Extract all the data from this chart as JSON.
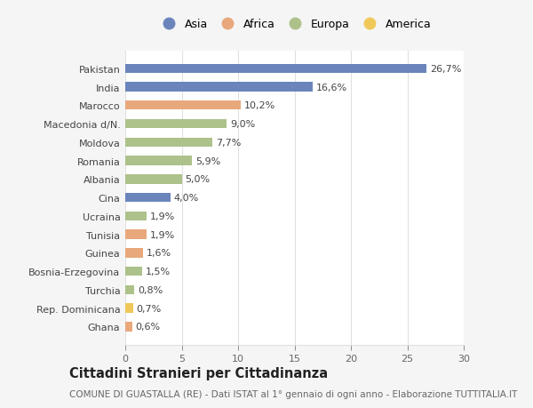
{
  "countries": [
    "Pakistan",
    "India",
    "Marocco",
    "Macedonia d/N.",
    "Moldova",
    "Romania",
    "Albania",
    "Cina",
    "Ucraina",
    "Tunisia",
    "Guinea",
    "Bosnia-Erzegovina",
    "Turchia",
    "Rep. Dominicana",
    "Ghana"
  ],
  "values": [
    26.7,
    16.6,
    10.2,
    9.0,
    7.7,
    5.9,
    5.0,
    4.0,
    1.9,
    1.9,
    1.6,
    1.5,
    0.8,
    0.7,
    0.6
  ],
  "continents": [
    "Asia",
    "Asia",
    "Africa",
    "Europa",
    "Europa",
    "Europa",
    "Europa",
    "Asia",
    "Europa",
    "Africa",
    "Africa",
    "Europa",
    "Europa",
    "America",
    "Africa"
  ],
  "continent_colors": {
    "Asia": "#6b85bc",
    "Africa": "#e8a87c",
    "Europa": "#adc18a",
    "America": "#f0c85a"
  },
  "legend_order": [
    "Asia",
    "Africa",
    "Europa",
    "America"
  ],
  "title": "Cittadini Stranieri per Cittadinanza",
  "subtitle": "COMUNE DI GUASTALLA (RE) - Dati ISTAT al 1° gennaio di ogni anno - Elaborazione TUTTITALIA.IT",
  "xlim": [
    0,
    30
  ],
  "xticks": [
    0,
    5,
    10,
    15,
    20,
    25,
    30
  ],
  "background_color": "#f5f5f5",
  "bar_background": "#ffffff",
  "grid_color": "#e0e0e0",
  "label_fontsize": 8,
  "value_fontsize": 8,
  "title_fontsize": 10.5,
  "subtitle_fontsize": 7.5
}
